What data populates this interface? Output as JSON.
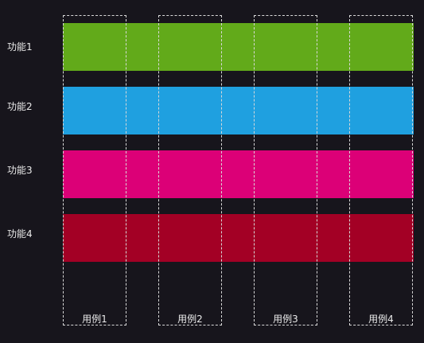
{
  "rows": [
    {
      "label": "功能1",
      "color": "#62aa1a"
    },
    {
      "label": "功能2",
      "color": "#1fa0e0"
    },
    {
      "label": "功能3",
      "color": "#dc0077"
    },
    {
      "label": "功能4",
      "color": "#a30025"
    }
  ],
  "columns": [
    {
      "label": "用例1"
    },
    {
      "label": "用例2"
    },
    {
      "label": "用例3"
    },
    {
      "label": "用例4"
    }
  ],
  "colors": {
    "background": "#17151c",
    "frame": "#d8d8d8",
    "text": "#eaeaea"
  }
}
